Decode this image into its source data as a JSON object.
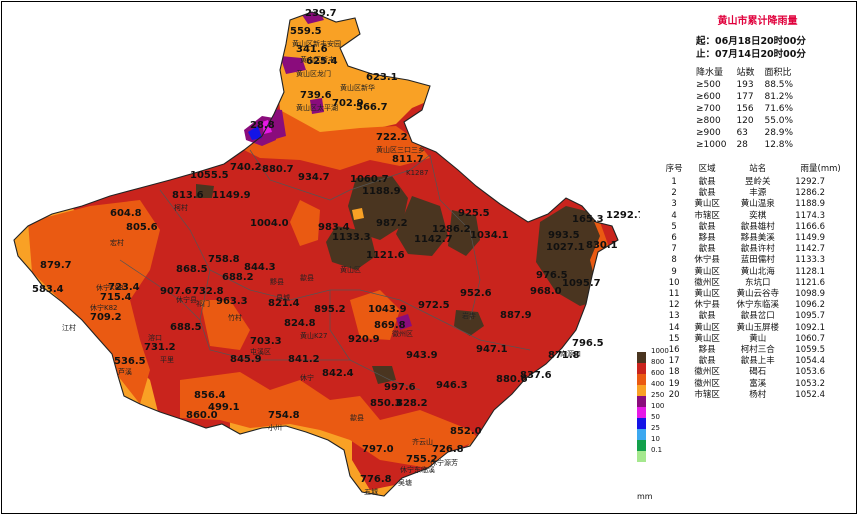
{
  "panel": {
    "title": "黄山市累计降雨量",
    "start": "起：06月18日20时00分",
    "end": "止：07月14日20时00分",
    "stats_headers": [
      "降水量",
      "站数",
      "面积比"
    ],
    "stats": [
      [
        "≥500",
        "193",
        "88.5%"
      ],
      [
        "≥600",
        "177",
        "81.2%"
      ],
      [
        "≥700",
        "156",
        "71.6%"
      ],
      [
        "≥800",
        "120",
        "55.0%"
      ],
      [
        "≥900",
        "63",
        "28.9%"
      ],
      [
        "≥1000",
        "28",
        "12.8%"
      ]
    ],
    "rank_headers": [
      "序号",
      "区域",
      "站名",
      "雨量(mm)"
    ],
    "rank": [
      [
        "1",
        "歙县",
        "昱岭关",
        "1292.7"
      ],
      [
        "2",
        "歙县",
        "丰源",
        "1286.2"
      ],
      [
        "3",
        "黄山区",
        "黄山温泉",
        "1188.9"
      ],
      [
        "4",
        "市辖区",
        "奕棋",
        "1174.3"
      ],
      [
        "5",
        "歙县",
        "歙县雄村",
        "1166.6"
      ],
      [
        "6",
        "黟县",
        "黟县美溪",
        "1149.9"
      ],
      [
        "7",
        "歙县",
        "歙县许村",
        "1142.7"
      ],
      [
        "8",
        "休宁县",
        "蓝田儒村",
        "1133.3"
      ],
      [
        "9",
        "黄山区",
        "黄山北海",
        "1128.1"
      ],
      [
        "10",
        "徽州区",
        "东坑口",
        "1121.6"
      ],
      [
        "11",
        "黄山区",
        "黄山云谷寺",
        "1098.9"
      ],
      [
        "12",
        "休宁县",
        "休宁东临溪",
        "1096.2"
      ],
      [
        "13",
        "歙县",
        "歙县岔口",
        "1095.7"
      ],
      [
        "14",
        "黄山区",
        "黄山玉屏楼",
        "1092.1"
      ],
      [
        "15",
        "黄山区",
        "黄山",
        "1060.7"
      ],
      [
        "16",
        "黟县",
        "柯村三合",
        "1059.5"
      ],
      [
        "17",
        "歙县",
        "歙县上丰",
        "1054.4"
      ],
      [
        "18",
        "徽州区",
        "碣石",
        "1053.6"
      ],
      [
        "19",
        "徽州区",
        "富溪",
        "1053.2"
      ],
      [
        "20",
        "市辖区",
        "杨村",
        "1052.4"
      ]
    ]
  },
  "legend": {
    "unit": "mm",
    "items": [
      {
        "label": "1000",
        "color": "#4a3520"
      },
      {
        "label": "800",
        "color": "#c9241d"
      },
      {
        "label": "600",
        "color": "#ea5a12"
      },
      {
        "label": "400",
        "color": "#f9a125"
      },
      {
        "label": "250",
        "color": "#8a0c7c"
      },
      {
        "label": "100",
        "color": "#e619e6"
      },
      {
        "label": "50",
        "color": "#1414e6"
      },
      {
        "label": "25",
        "color": "#3ca8f0"
      },
      {
        "label": "10",
        "color": "#13a04b"
      },
      {
        "label": "0.1",
        "color": "#a5e88e"
      }
    ]
  },
  "map": {
    "values": [
      "239.7",
      "559.5",
      "341.6",
      "625.4",
      "623.1",
      "739.6",
      "702.9",
      "566.7",
      "28.8",
      "722.2",
      "811.7",
      "740.2",
      "880.7",
      "1055.5",
      "934.7",
      "1060.7",
      "1188.9",
      "813.6",
      "1149.9",
      "604.8",
      "805.6",
      "1004.0",
      "983.4",
      "1133.3",
      "987.2",
      "925.5",
      "1142.7",
      "1286.2",
      "1034.1",
      "165.3",
      "1292.7",
      "993.5",
      "1027.1",
      "830.1",
      "879.7",
      "758.8",
      "844.3",
      "1121.6",
      "976.5",
      "1095.7",
      "723.4",
      "583.4",
      "715.4",
      "868.5",
      "688.2",
      "907.6",
      "732.8",
      "963.3",
      "968.0",
      "709.2",
      "821.4",
      "895.2",
      "1043.9",
      "972.5",
      "952.6",
      "688.5",
      "824.8",
      "869.8",
      "887.9",
      "703.3",
      "920.9",
      "731.2",
      "536.5",
      "845.9",
      "841.2",
      "943.9",
      "947.1",
      "796.5",
      "842.4",
      "871.8",
      "856.4",
      "997.6",
      "946.3",
      "880.6",
      "837.6",
      "499.1",
      "850.3",
      "828.2",
      "860.0",
      "754.8",
      "852.0",
      "797.0",
      "726.8",
      "755.2",
      "776.8"
    ],
    "places": [
      "黄山区新丰安园",
      "黄山区新丰",
      "黄山区龙门",
      "黄山区新华",
      "黄山区太平湖",
      "黄山区三口三乡",
      "K1287",
      "柯村",
      "黟县",
      "宏村",
      "歙县",
      "县城",
      "黄山区",
      "休宁县",
      "屯溪区",
      "徽州区",
      "岩寺",
      "休宁K82",
      "祁门",
      "溶口",
      "芦溪",
      "平里",
      "江村",
      "竹村",
      "黄山K27",
      "休宁K88",
      "休宁",
      "歙县",
      "南源口",
      "小川",
      "齐云山",
      "休宁东临溪",
      "五城",
      "吴塘",
      "休宁源芳"
    ]
  }
}
